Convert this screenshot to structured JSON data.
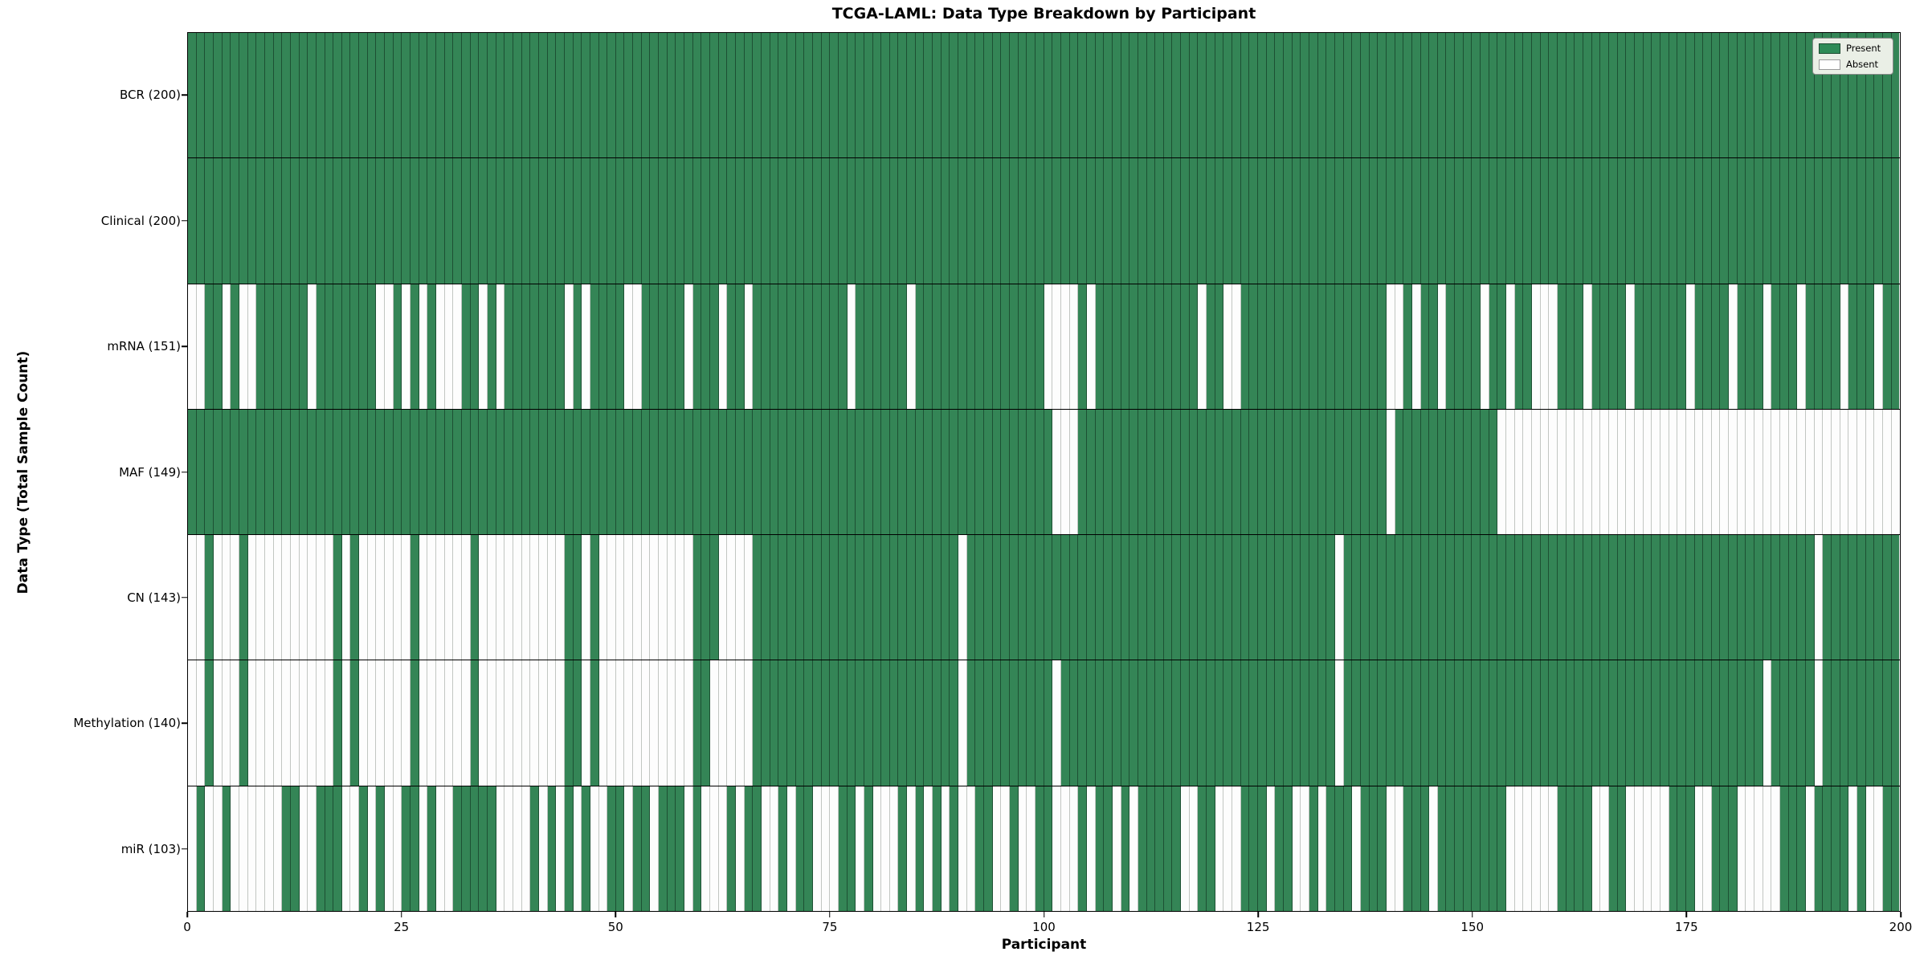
{
  "chart_data": {
    "type": "heatmap",
    "title": "TCGA-LAML: Data Type Breakdown by Participant",
    "xlabel": "Participant",
    "ylabel": "Data Type (Total Sample Count)",
    "x_ticks": [
      0,
      25,
      50,
      75,
      100,
      125,
      150,
      175,
      200
    ],
    "n_participants": 200,
    "cell_states": [
      "present",
      "absent"
    ],
    "colors": {
      "present": "#2e8b57",
      "absent": "#ffffff",
      "present_edge": "#14321f",
      "absent_edge": "#c2c6c2",
      "row_divider": "#000000",
      "legend_bg": "#eaefe6"
    },
    "legend": {
      "position": "upper right",
      "entries": [
        {
          "label": "Present",
          "color": "#2e8b57"
        },
        {
          "label": "Absent",
          "color": "#ffffff"
        }
      ]
    },
    "rows": [
      {
        "label": "BCR (200)",
        "data_type": "BCR",
        "total_samples": 200,
        "absent": []
      },
      {
        "label": "Clinical (200)",
        "data_type": "Clinical",
        "total_samples": 200,
        "absent": []
      },
      {
        "label": "mRNA (151)",
        "data_type": "mRNA",
        "total_samples": 151,
        "absent": [
          0,
          1,
          4,
          6,
          7,
          14,
          22,
          23,
          25,
          27,
          29,
          30,
          31,
          34,
          36,
          44,
          46,
          51,
          52,
          58,
          62,
          65,
          77,
          84,
          100,
          101,
          102,
          103,
          105,
          118,
          121,
          122,
          140,
          141,
          143,
          146,
          151,
          154,
          157,
          158,
          159,
          163,
          168,
          175,
          180,
          184,
          188,
          193,
          197
        ]
      },
      {
        "label": "MAF (149)",
        "data_type": "MAF",
        "total_samples": 149,
        "absent": [
          101,
          102,
          103,
          140,
          153,
          154,
          155,
          156,
          157,
          158,
          159,
          160,
          161,
          162,
          163,
          164,
          165,
          166,
          167,
          168,
          169,
          170,
          171,
          172,
          173,
          174,
          175,
          176,
          177,
          178,
          179,
          180,
          181,
          182,
          183,
          184,
          185,
          186,
          187,
          188,
          189,
          190,
          191,
          192,
          193,
          194,
          195,
          196,
          197,
          198,
          199
        ]
      },
      {
        "label": "CN (143)",
        "data_type": "CN",
        "total_samples": 143,
        "absent": [
          0,
          1,
          3,
          4,
          5,
          7,
          8,
          9,
          10,
          11,
          12,
          13,
          14,
          15,
          16,
          18,
          20,
          21,
          22,
          23,
          24,
          25,
          27,
          28,
          29,
          30,
          31,
          32,
          34,
          35,
          36,
          37,
          38,
          39,
          40,
          41,
          42,
          43,
          46,
          48,
          49,
          50,
          51,
          52,
          53,
          54,
          55,
          56,
          57,
          58,
          62,
          63,
          64,
          65,
          90,
          134,
          190
        ]
      },
      {
        "label": "Methylation (140)",
        "data_type": "Methylation",
        "total_samples": 140,
        "absent": [
          0,
          1,
          3,
          4,
          5,
          7,
          8,
          9,
          10,
          11,
          12,
          13,
          14,
          15,
          16,
          18,
          20,
          21,
          22,
          23,
          24,
          25,
          27,
          28,
          29,
          30,
          31,
          32,
          34,
          35,
          36,
          37,
          38,
          39,
          40,
          41,
          42,
          43,
          46,
          48,
          49,
          50,
          51,
          52,
          53,
          54,
          55,
          56,
          57,
          58,
          61,
          62,
          63,
          64,
          65,
          90,
          101,
          134,
          184,
          190
        ]
      },
      {
        "label": "miR (103)",
        "data_type": "miR",
        "total_samples": 103,
        "absent": [
          0,
          2,
          3,
          5,
          6,
          7,
          8,
          9,
          10,
          13,
          14,
          18,
          19,
          21,
          23,
          24,
          27,
          29,
          30,
          36,
          37,
          38,
          39,
          41,
          43,
          45,
          47,
          48,
          51,
          54,
          58,
          60,
          61,
          62,
          64,
          67,
          68,
          70,
          73,
          74,
          75,
          78,
          80,
          81,
          82,
          84,
          86,
          88,
          90,
          91,
          94,
          95,
          97,
          98,
          101,
          102,
          103,
          105,
          108,
          110,
          116,
          117,
          120,
          121,
          122,
          126,
          129,
          130,
          132,
          136,
          140,
          141,
          145,
          154,
          155,
          156,
          157,
          158,
          159,
          164,
          165,
          168,
          169,
          170,
          171,
          172,
          176,
          177,
          181,
          182,
          183,
          184,
          185,
          189,
          194,
          196,
          197
        ]
      }
    ]
  }
}
